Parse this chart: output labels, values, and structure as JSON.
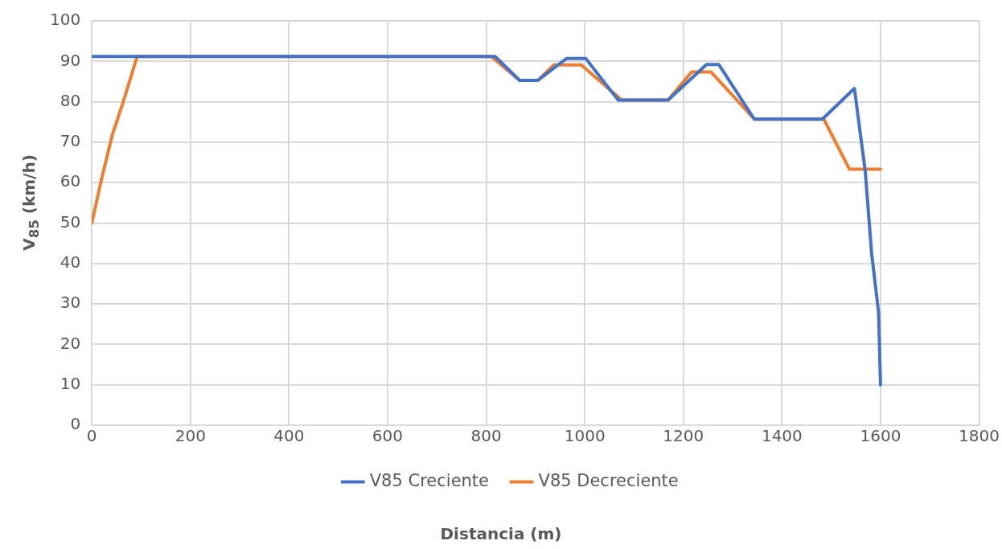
{
  "chart_data": {
    "type": "line",
    "xlabel": "Distancia (m)",
    "ylabel": "V$_{85}$ (km/h)",
    "xlim": [
      0,
      1800
    ],
    "xticks": [
      0,
      200,
      400,
      600,
      800,
      1000,
      1200,
      1400,
      1600,
      1800
    ],
    "ylim": [
      0,
      100
    ],
    "yticks": [
      0,
      10,
      20,
      30,
      40,
      50,
      60,
      70,
      80,
      90,
      100
    ],
    "grid": true,
    "legend": "bottom",
    "marker": "none",
    "line_style": "solid",
    "series": [
      {
        "name": "V85 Creciente",
        "color": "#4472c4",
        "x": [
          0,
          818,
          868,
          905,
          963,
          1002,
          1068,
          1169,
          1247,
          1272,
          1344,
          1482,
          1547,
          1569,
          1582,
          1596,
          1600
        ],
        "values": [
          91.2,
          91.2,
          85.3,
          85.3,
          90.7,
          90.7,
          80.4,
          80.4,
          89.2,
          89.2,
          75.7,
          75.7,
          83.3,
          62.8,
          42.4,
          28,
          10
        ]
      },
      {
        "name": "V85 Decreciente",
        "color": "#ed7d31",
        "x": [
          0,
          20,
          42,
          62,
          92,
          810,
          868,
          905,
          937,
          993,
          1075,
          1169,
          1217,
          1256,
          1344,
          1485,
          1537,
          1600
        ],
        "values": [
          50,
          61,
          72,
          79.3,
          91.2,
          91.2,
          85.3,
          85.3,
          89.1,
          89.1,
          80.4,
          80.4,
          87.4,
          87.4,
          75.7,
          75.7,
          63.3,
          63.3
        ]
      }
    ]
  }
}
